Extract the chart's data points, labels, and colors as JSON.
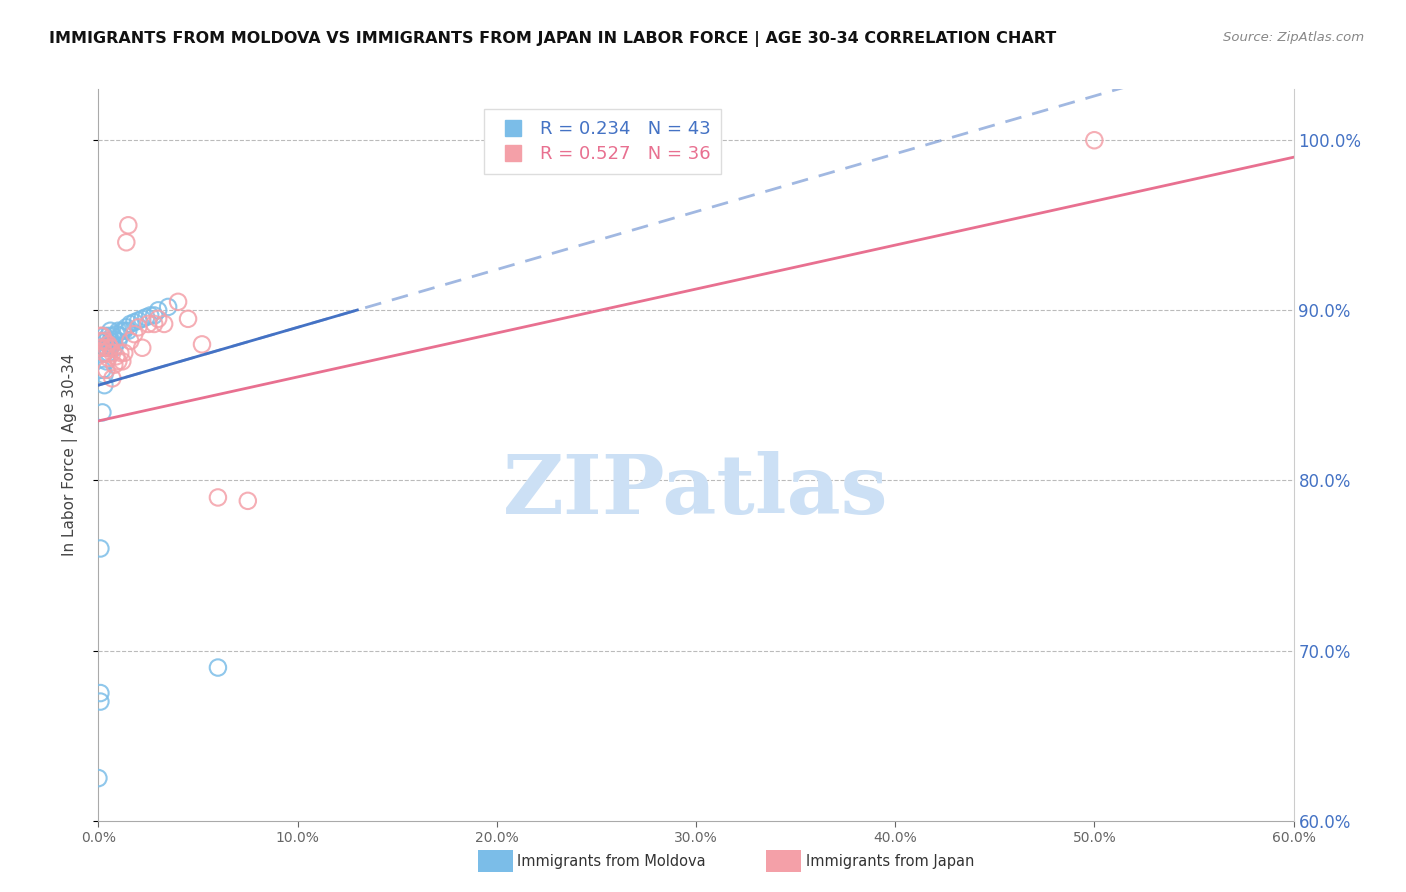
{
  "title": "IMMIGRANTS FROM MOLDOVA VS IMMIGRANTS FROM JAPAN IN LABOR FORCE | AGE 30-34 CORRELATION CHART",
  "source": "Source: ZipAtlas.com",
  "ylabel": "In Labor Force | Age 30-34",
  "xlim": [
    0.0,
    0.6
  ],
  "ylim": [
    0.6,
    1.03
  ],
  "moldova_color": "#7bbde8",
  "moldova_edge": "#5a9fd4",
  "japan_color": "#f4a0a8",
  "japan_edge": "#e06878",
  "moldova_line_color": "#4472c4",
  "japan_line_color": "#e87090",
  "moldova_R": 0.234,
  "moldova_N": 43,
  "japan_R": 0.527,
  "japan_N": 36,
  "moldova_scatter_x": [
    0.0,
    0.001,
    0.001,
    0.001,
    0.002,
    0.002,
    0.002,
    0.002,
    0.003,
    0.003,
    0.003,
    0.003,
    0.004,
    0.004,
    0.004,
    0.005,
    0.005,
    0.005,
    0.006,
    0.006,
    0.006,
    0.007,
    0.007,
    0.008,
    0.008,
    0.009,
    0.01,
    0.01,
    0.011,
    0.012,
    0.013,
    0.014,
    0.015,
    0.016,
    0.018,
    0.02,
    0.022,
    0.024,
    0.026,
    0.028,
    0.03,
    0.035,
    0.06
  ],
  "moldova_scatter_y": [
    0.625,
    0.67,
    0.675,
    0.76,
    0.84,
    0.865,
    0.878,
    0.882,
    0.856,
    0.862,
    0.875,
    0.885,
    0.87,
    0.878,
    0.882,
    0.875,
    0.88,
    0.885,
    0.878,
    0.882,
    0.888,
    0.88,
    0.885,
    0.878,
    0.883,
    0.886,
    0.882,
    0.888,
    0.885,
    0.888,
    0.888,
    0.89,
    0.888,
    0.892,
    0.893,
    0.894,
    0.895,
    0.896,
    0.897,
    0.897,
    0.9,
    0.902,
    0.69
  ],
  "japan_scatter_x": [
    0.0,
    0.001,
    0.001,
    0.002,
    0.002,
    0.003,
    0.003,
    0.004,
    0.004,
    0.005,
    0.005,
    0.006,
    0.007,
    0.007,
    0.008,
    0.009,
    0.01,
    0.011,
    0.012,
    0.013,
    0.014,
    0.015,
    0.016,
    0.018,
    0.02,
    0.022,
    0.025,
    0.028,
    0.03,
    0.033,
    0.04,
    0.045,
    0.052,
    0.06,
    0.075,
    0.5
  ],
  "japan_scatter_y": [
    0.878,
    0.882,
    0.885,
    0.878,
    0.885,
    0.875,
    0.882,
    0.865,
    0.878,
    0.872,
    0.88,
    0.878,
    0.86,
    0.875,
    0.868,
    0.873,
    0.87,
    0.875,
    0.87,
    0.875,
    0.94,
    0.95,
    0.882,
    0.886,
    0.89,
    0.878,
    0.892,
    0.892,
    0.895,
    0.892,
    0.905,
    0.895,
    0.88,
    0.79,
    0.788,
    1.0
  ],
  "watermark_text": "ZIPatlas",
  "watermark_color": "#cce0f5"
}
